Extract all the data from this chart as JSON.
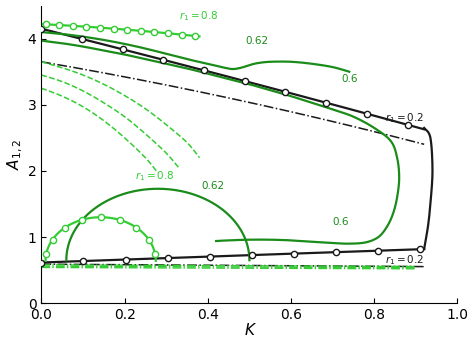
{
  "xlabel": "K",
  "ylabel": "$A_{1,2}$",
  "xlim": [
    0.0,
    1.0
  ],
  "ylim": [
    0.0,
    4.5
  ],
  "xticks": [
    0.0,
    0.2,
    0.4,
    0.6,
    0.8,
    1.0
  ],
  "yticks": [
    0,
    1,
    2,
    3,
    4
  ],
  "bg": "#ffffff",
  "black": "#1a1a1a",
  "green": "#33cc33",
  "dgreen": "#1a8c1a",
  "lw_main": 1.6,
  "lw_sec": 1.1,
  "ms": 4.5
}
